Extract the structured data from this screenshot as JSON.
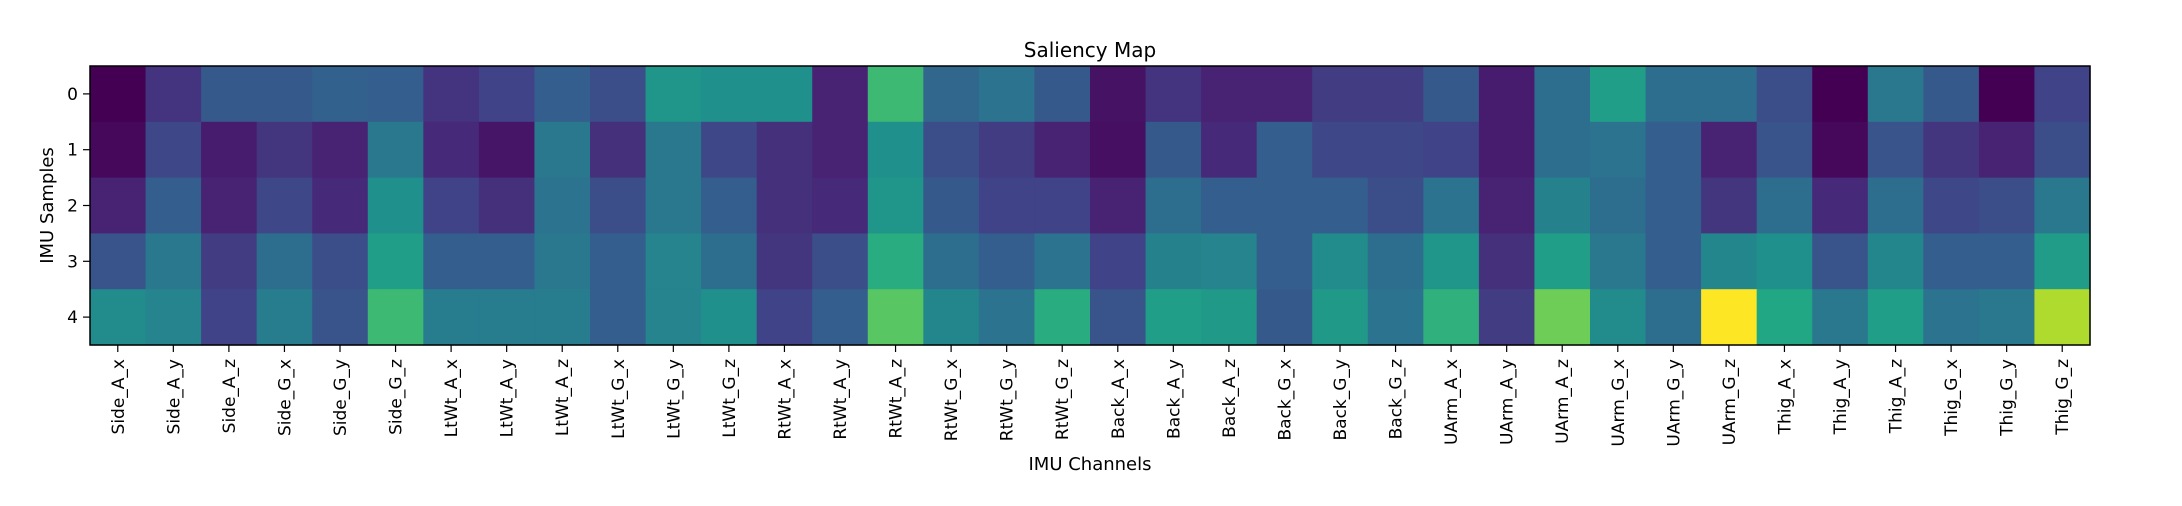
{
  "chart_data": {
    "type": "heatmap",
    "title": "Saliency Map",
    "xlabel": "IMU Channels",
    "ylabel": "IMU Samples",
    "colormap": "viridis",
    "grid": false,
    "x_categories": [
      "Side_A_x",
      "Side_A_y",
      "Side_A_z",
      "Side_G_x",
      "Side_G_y",
      "Side_G_z",
      "LtWt_A_x",
      "LtWt_A_y",
      "LtWt_A_z",
      "LtWt_G_x",
      "LtWt_G_y",
      "LtWt_G_z",
      "RtWt_A_x",
      "RtWt_A_y",
      "RtWt_A_z",
      "RtWt_G_x",
      "RtWt_G_y",
      "RtWt_G_z",
      "Back_A_x",
      "Back_A_y",
      "Back_A_z",
      "Back_G_x",
      "Back_G_y",
      "Back_G_z",
      "UArm_A_x",
      "UArm_A_y",
      "UArm_A_z",
      "UArm_G_x",
      "UArm_G_y",
      "UArm_G_z",
      "Thig_A_x",
      "Thig_A_y",
      "Thig_A_z",
      "Thig_G_x",
      "Thig_G_y",
      "Thig_G_z"
    ],
    "y_categories": [
      "0",
      "1",
      "2",
      "3",
      "4"
    ],
    "values": [
      [
        0.0,
        0.15,
        0.28,
        0.28,
        0.31,
        0.3,
        0.15,
        0.2,
        0.3,
        0.24,
        0.52,
        0.5,
        0.5,
        0.1,
        0.68,
        0.33,
        0.38,
        0.28,
        0.05,
        0.15,
        0.1,
        0.1,
        0.18,
        0.18,
        0.28,
        0.08,
        0.36,
        0.56,
        0.36,
        0.36,
        0.24,
        0.0,
        0.4,
        0.28,
        0.0,
        0.2
      ],
      [
        0.02,
        0.22,
        0.08,
        0.16,
        0.1,
        0.4,
        0.12,
        0.06,
        0.4,
        0.14,
        0.4,
        0.22,
        0.14,
        0.1,
        0.5,
        0.24,
        0.18,
        0.1,
        0.04,
        0.28,
        0.12,
        0.3,
        0.22,
        0.22,
        0.2,
        0.08,
        0.36,
        0.38,
        0.3,
        0.1,
        0.26,
        0.02,
        0.26,
        0.16,
        0.1,
        0.24
      ],
      [
        0.1,
        0.3,
        0.1,
        0.22,
        0.12,
        0.5,
        0.2,
        0.14,
        0.38,
        0.24,
        0.4,
        0.3,
        0.14,
        0.12,
        0.52,
        0.28,
        0.2,
        0.2,
        0.1,
        0.36,
        0.3,
        0.3,
        0.3,
        0.24,
        0.38,
        0.1,
        0.44,
        0.36,
        0.3,
        0.16,
        0.36,
        0.12,
        0.36,
        0.22,
        0.24,
        0.4
      ],
      [
        0.26,
        0.4,
        0.18,
        0.36,
        0.24,
        0.56,
        0.3,
        0.3,
        0.4,
        0.3,
        0.45,
        0.36,
        0.16,
        0.24,
        0.62,
        0.36,
        0.3,
        0.38,
        0.2,
        0.44,
        0.45,
        0.3,
        0.48,
        0.36,
        0.52,
        0.14,
        0.56,
        0.4,
        0.3,
        0.46,
        0.5,
        0.26,
        0.46,
        0.3,
        0.3,
        0.55
      ],
      [
        0.48,
        0.45,
        0.2,
        0.42,
        0.26,
        0.68,
        0.42,
        0.42,
        0.42,
        0.3,
        0.45,
        0.5,
        0.2,
        0.3,
        0.74,
        0.46,
        0.38,
        0.62,
        0.26,
        0.56,
        0.54,
        0.28,
        0.54,
        0.38,
        0.64,
        0.18,
        0.78,
        0.48,
        0.36,
        1.0,
        0.6,
        0.4,
        0.56,
        0.38,
        0.4,
        0.88
      ]
    ]
  }
}
